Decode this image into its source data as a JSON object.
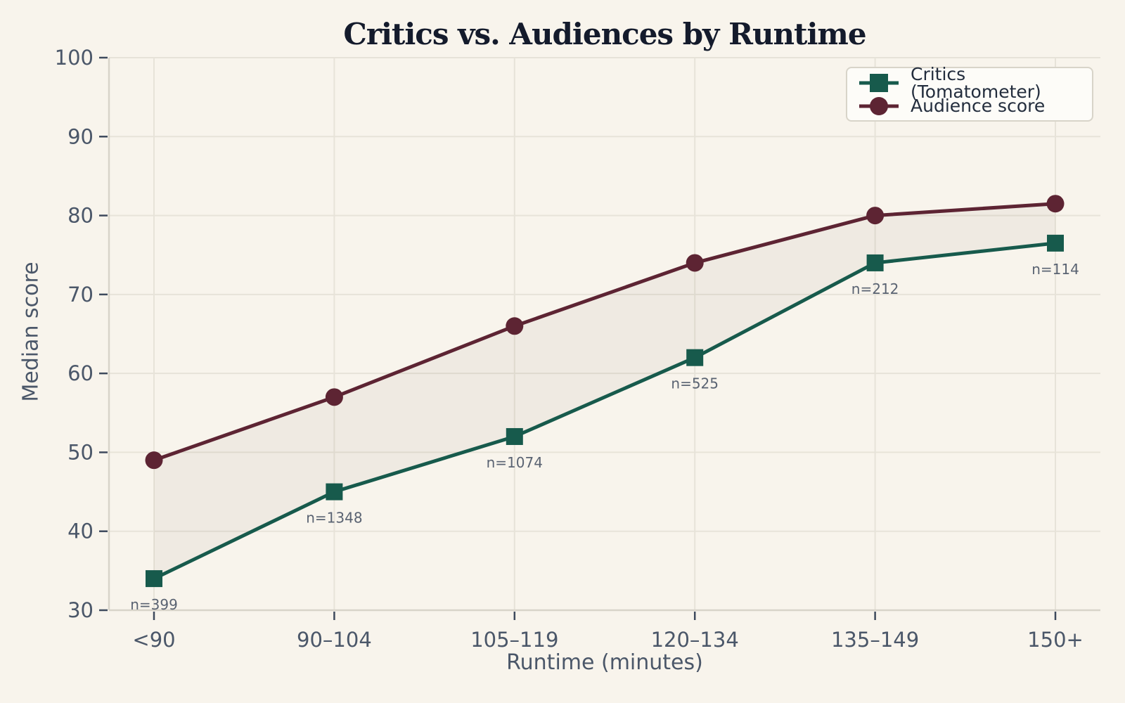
{
  "title": "Critics vs. Audiences by Runtime",
  "chart_data": {
    "type": "line",
    "categories": [
      "<90",
      "90–104",
      "105–119",
      "120–134",
      "135–149",
      "150+"
    ],
    "series": [
      {
        "name": "Critics (Tomatometer)",
        "values": [
          34,
          45,
          52,
          62,
          74,
          76.5
        ],
        "color": "#175a4c",
        "marker": "square"
      },
      {
        "name": "Audience score",
        "values": [
          49,
          57,
          66,
          74,
          80,
          81.5
        ],
        "color": "#5d2433",
        "marker": "circle"
      }
    ],
    "annotations": {
      "attached_to_series": "Critics (Tomatometer)",
      "labels": [
        "n=399",
        "n=1348",
        "n=1074",
        "n=525",
        "n=212",
        "n=114"
      ],
      "sample_sizes": [
        399,
        1348,
        1074,
        525,
        212,
        114
      ]
    },
    "xlabel": "Runtime (minutes)",
    "ylabel": "Median score",
    "ylim": [
      30,
      100
    ],
    "yticks": [
      30,
      40,
      50,
      60,
      70,
      80,
      90,
      100
    ],
    "grid": true,
    "fill_between_series": true,
    "legend_position": "top-right"
  },
  "colors": {
    "background": "#f8f4ec",
    "grid": "#e7e3d9",
    "spine": "#d8d4c9",
    "tick_mark": "#3e4a5d",
    "tick_label": "#4b5769",
    "axis_label": "#4b5769",
    "title": "#141b2c",
    "annotation": "#5a6372",
    "band_fill": "rgba(70,60,40,0.05)",
    "legend_background": "#fdfcf8",
    "legend_border": "#d8d4c9",
    "legend_text": "#232d3d"
  }
}
